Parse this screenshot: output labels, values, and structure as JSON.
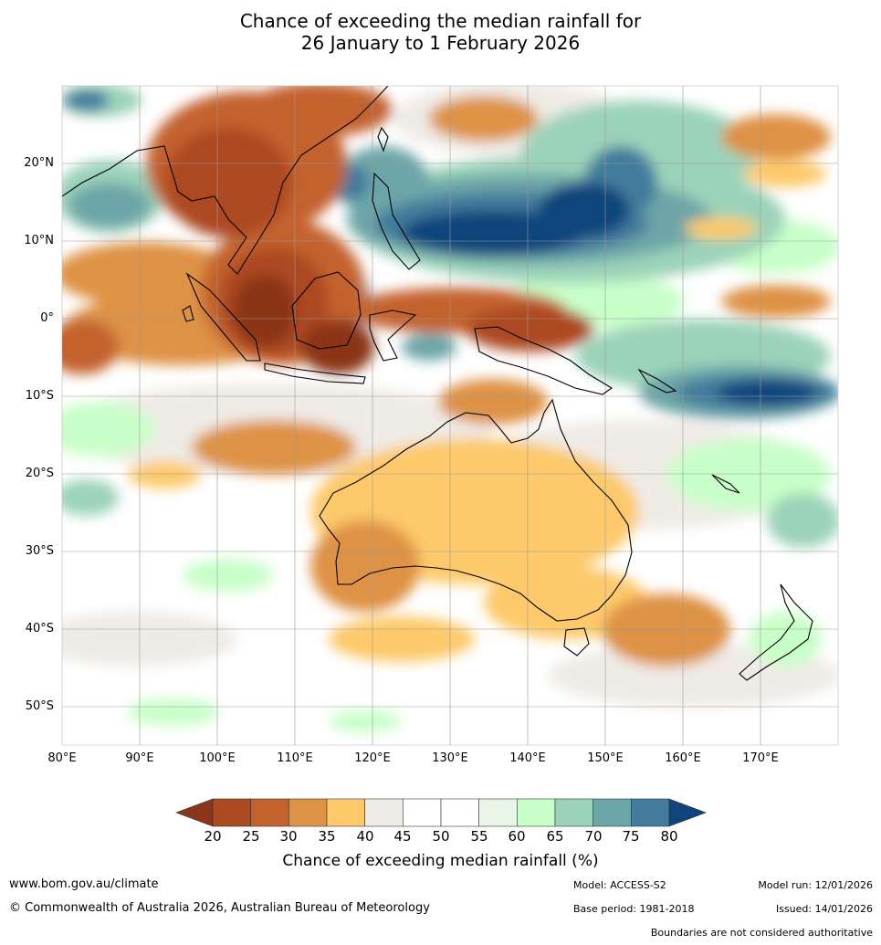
{
  "title": {
    "line1": "Chance of exceeding the median rainfall for",
    "line2": "26 January to 1 February 2026"
  },
  "map": {
    "region": "Australia, Maritime Continent and western Pacific",
    "lat_labels": [
      "20°N",
      "10°N",
      "0°",
      "10°S",
      "20°S",
      "30°S",
      "40°S",
      "50°S"
    ],
    "lon_labels": [
      "80°E",
      "90°E",
      "100°E",
      "110°E",
      "120°E",
      "130°E",
      "140°E",
      "150°E",
      "160°E",
      "170°E"
    ],
    "lat_range": [
      -55,
      30
    ],
    "lon_range": [
      80,
      180
    ]
  },
  "colorbar": {
    "label": "Chance of exceeding median rainfall (%)",
    "ticks": [
      "20",
      "25",
      "30",
      "35",
      "40",
      "45",
      "50",
      "55",
      "60",
      "65",
      "70",
      "75",
      "80"
    ],
    "colors": [
      "#8b3519",
      "#ad4a22",
      "#c4622e",
      "#de9245",
      "#fdc96a",
      "#efebe6",
      "#ffffff",
      "#ffffff",
      "#e8f6e8",
      "#c8ffc8",
      "#9bd3b9",
      "#6da6a8",
      "#427b9c",
      "#10457c"
    ]
  },
  "footer": {
    "website": "www.bom.gov.au/climate",
    "copyright": "© Commonwealth of Australia 2026, Australian Bureau of Meteorology",
    "model": "Model: ACCESS-S2",
    "base_period": "Base period: 1981-2018",
    "model_run": "Model run: 12/01/2026",
    "issued": "Issued: 14/01/2026",
    "disclaimer": "Boundaries are not considered authoritative"
  }
}
